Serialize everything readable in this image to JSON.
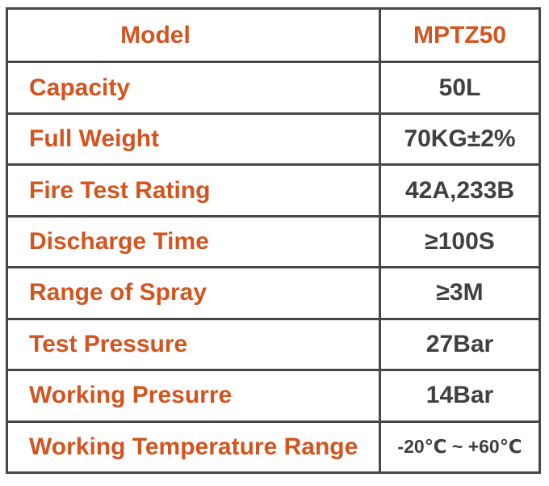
{
  "table": {
    "rows": [
      {
        "label": "Model",
        "value": "MPTZ50"
      },
      {
        "label": "Capacity",
        "value": "50L"
      },
      {
        "label": "Full Weight",
        "value": "70KG±2%"
      },
      {
        "label": "Fire Test Rating",
        "value": "42A,233B"
      },
      {
        "label": "Discharge Time",
        "value": "≥100S"
      },
      {
        "label": "Range of Spray",
        "value": "≥3M"
      },
      {
        "label": "Test Pressure",
        "value": "27Bar"
      },
      {
        "label": "Working Presurre",
        "value": "14Bar"
      },
      {
        "label": "Working Temperature Range",
        "value": "-20℃ ~ +60℃"
      }
    ],
    "colors": {
      "label_orange": "#d3541e",
      "value_gray": "#404040",
      "border_gray": "#474747",
      "background": "#ffffff"
    }
  }
}
